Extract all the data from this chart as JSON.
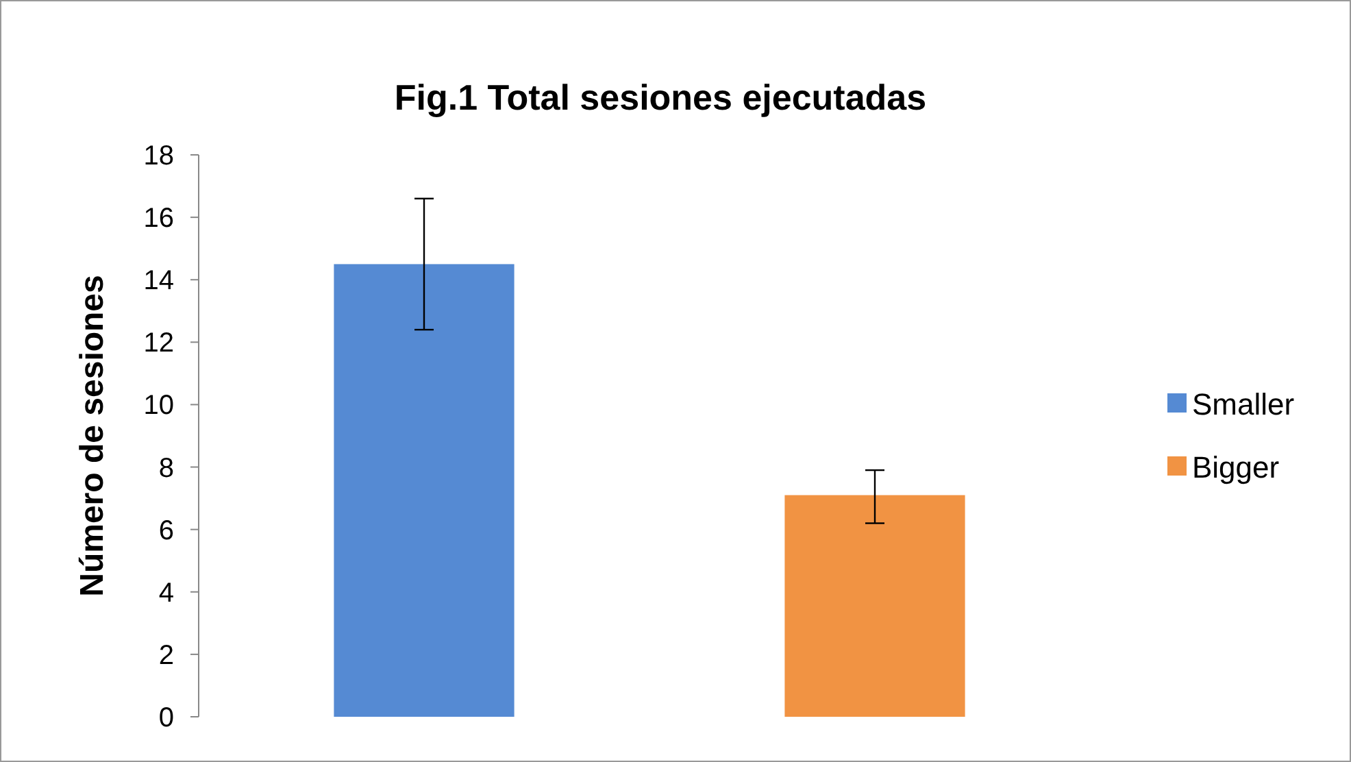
{
  "chart_data": {
    "type": "bar",
    "title": "Fig.1 Total sesiones ejecutadas",
    "ylabel": "Número de sesiones",
    "categories": [
      null,
      null
    ],
    "stacked": true,
    "series": [
      {
        "name": "Smaller",
        "color": "#558ad3",
        "values": [
          14.5,
          null
        ],
        "errors": [
          [
            12.4,
            16.6
          ],
          null
        ]
      },
      {
        "name": "Bigger",
        "color": "#f19343",
        "values": [
          null,
          7.1
        ],
        "errors": [
          null,
          [
            6.2,
            7.9
          ]
        ]
      }
    ],
    "ylim": [
      0,
      18
    ],
    "yticks": [
      0,
      2,
      4,
      6,
      8,
      10,
      12,
      14,
      16,
      18
    ],
    "grid": false,
    "legend": "right"
  }
}
